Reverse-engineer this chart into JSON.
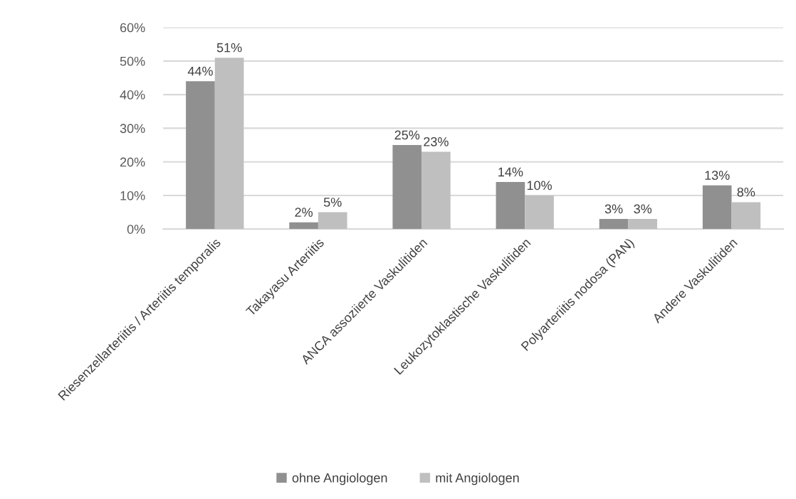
{
  "chart_data": {
    "type": "bar",
    "categories": [
      "Riesenzellarteriitis / Arteriitis temporalis",
      "Takayasu Arteriitis",
      "ANCA assoziierte Vaskulitiden",
      "Leukozytoklastische Vaskulitiden",
      "Polyarteriitis nodosa (PAN)",
      "Andere Vaskulitiden"
    ],
    "series": [
      {
        "name": "ohne Angiologen",
        "color": "#909090",
        "values": [
          44,
          2,
          25,
          14,
          3,
          13
        ],
        "value_labels": [
          "44%",
          "2%",
          "25%",
          "14%",
          "3%",
          "13%"
        ]
      },
      {
        "name": "mit Angiologen",
        "color": "#bfbfbf",
        "values": [
          51,
          5,
          23,
          10,
          3,
          8
        ],
        "value_labels": [
          "51%",
          "5%",
          "23%",
          "10%",
          "3%",
          "8%"
        ]
      }
    ],
    "ylim": [
      0,
      60
    ],
    "yticks": [
      {
        "value": 0,
        "label": "0%"
      },
      {
        "value": 10,
        "label": "10%"
      },
      {
        "value": 20,
        "label": "20%"
      },
      {
        "value": 30,
        "label": "30%"
      },
      {
        "value": 40,
        "label": "40%"
      },
      {
        "value": 50,
        "label": "50%"
      },
      {
        "value": 60,
        "label": "60%"
      }
    ],
    "grid": "y",
    "legend": "bottom"
  }
}
